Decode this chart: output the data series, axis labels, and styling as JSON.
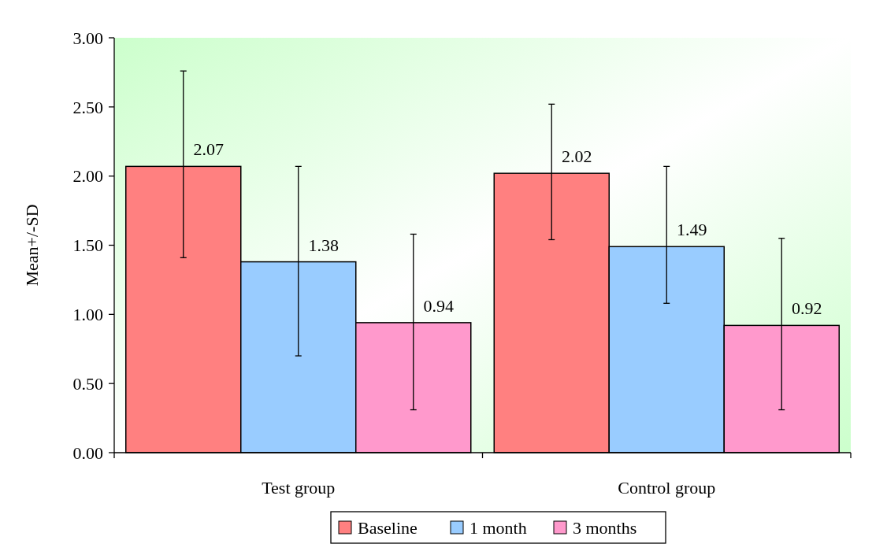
{
  "chart_data": {
    "type": "bar",
    "ylabel": "Mean+/-SD",
    "categories": [
      "Test group",
      "Control group"
    ],
    "series": [
      {
        "name": "Baseline",
        "color": "#ff8080",
        "values": [
          2.07,
          2.02
        ],
        "errors": [
          [
            1.41,
            2.76
          ],
          [
            1.54,
            2.52
          ]
        ]
      },
      {
        "name": "1 month",
        "color": "#99ccff",
        "values": [
          1.38,
          1.49
        ],
        "errors": [
          [
            0.7,
            2.07
          ],
          [
            1.08,
            2.07
          ]
        ]
      },
      {
        "name": "3 months",
        "color": "#ff99cc",
        "values": [
          0.94,
          0.92
        ],
        "errors": [
          [
            0.31,
            1.58
          ],
          [
            0.31,
            1.55
          ]
        ]
      }
    ],
    "data_labels": true,
    "ylim": [
      0,
      3
    ],
    "yticks": [
      {
        "value": 0,
        "label": "0.00"
      },
      {
        "value": 0.5,
        "label": "0.50"
      },
      {
        "value": 1,
        "label": "1.00"
      },
      {
        "value": 1.5,
        "label": "1.50"
      },
      {
        "value": 2,
        "label": "2.00"
      },
      {
        "value": 2.5,
        "label": "2.50"
      },
      {
        "value": 3,
        "label": "3.00"
      }
    ],
    "legend": "bottom"
  }
}
